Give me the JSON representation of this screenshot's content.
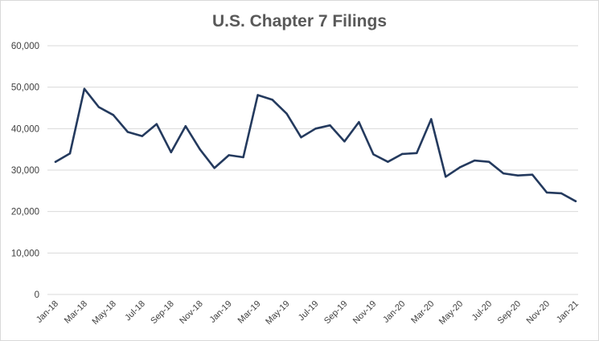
{
  "chart_data": {
    "type": "line",
    "title": "U.S. Chapter 7 Filings",
    "xlabel": "",
    "ylabel": "",
    "ylim": [
      0,
      60000
    ],
    "yticks": [
      0,
      10000,
      20000,
      30000,
      40000,
      50000,
      60000
    ],
    "ytick_labels": [
      "0",
      "10,000",
      "20,000",
      "30,000",
      "40,000",
      "50,000",
      "60,000"
    ],
    "grid": true,
    "legend": "none",
    "line_color": "#243a5e",
    "x": [
      "Jan-18",
      "Feb-18",
      "Mar-18",
      "Apr-18",
      "May-18",
      "Jun-18",
      "Jul-18",
      "Aug-18",
      "Sep-18",
      "Oct-18",
      "Nov-18",
      "Dec-18",
      "Jan-19",
      "Feb-19",
      "Mar-19",
      "Apr-19",
      "May-19",
      "Jun-19",
      "Jul-19",
      "Aug-19",
      "Sep-19",
      "Oct-19",
      "Nov-19",
      "Dec-19",
      "Jan-20",
      "Feb-20",
      "Mar-20",
      "Apr-20",
      "May-20",
      "Jun-20",
      "Jul-20",
      "Aug-20",
      "Sep-20",
      "Oct-20",
      "Nov-20",
      "Dec-20",
      "Jan-21"
    ],
    "x_tick_labels": [
      "Jan-18",
      "Mar-18",
      "May-18",
      "Jul-18",
      "Sep-18",
      "Nov-18",
      "Jan-19",
      "Mar-19",
      "May-19",
      "Jul-19",
      "Sep-19",
      "Nov-19",
      "Jan-20",
      "Mar-20",
      "May-20",
      "Jul-20",
      "Sep-20",
      "Nov-20",
      "Jan-21"
    ],
    "series": [
      {
        "values": [
          32000,
          34000,
          49600,
          45200,
          43300,
          39200,
          38200,
          41100,
          34300,
          40600,
          35000,
          30500,
          33600,
          33100,
          48100,
          47000,
          43600,
          37900,
          40000,
          40800,
          36900,
          41600,
          33800,
          32000,
          33900,
          34100,
          42300,
          28400,
          30700,
          32300,
          32000,
          29200,
          28700,
          28900,
          24600,
          24400,
          22500
        ]
      }
    ]
  }
}
